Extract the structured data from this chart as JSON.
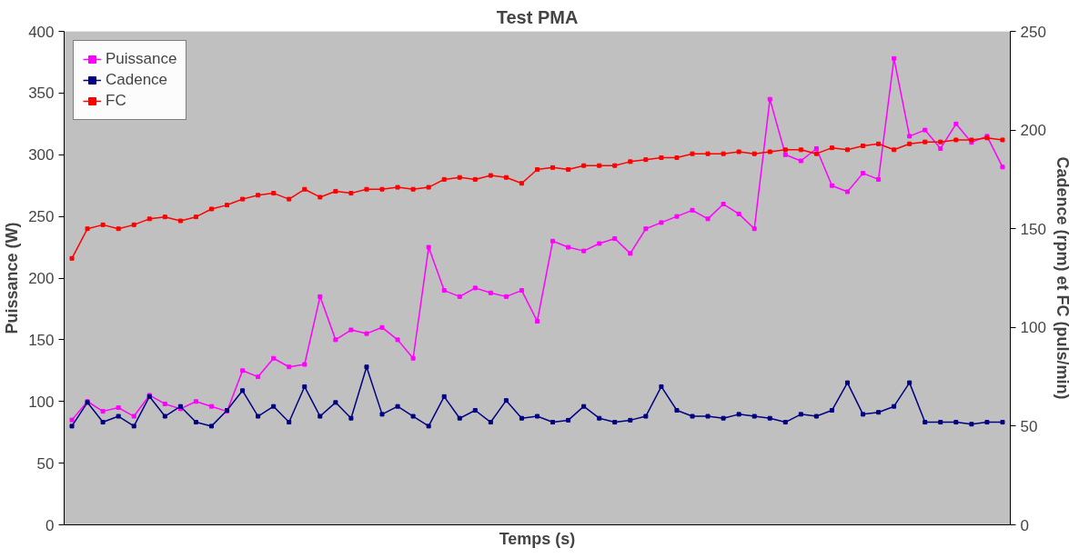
{
  "chart_data": {
    "type": "line",
    "title": "Test PMA",
    "xlabel": "Temps (s)",
    "ylabel": "Puissance (W)",
    "y2label": "Cadence (rpm) et FC (puls/min)",
    "categories": [
      null,
      null,
      null,
      null,
      null,
      null,
      null,
      null,
      null,
      null,
      null,
      null,
      null,
      null,
      null,
      null,
      null,
      null,
      null,
      null,
      null,
      null,
      null,
      null,
      null,
      null,
      null,
      null,
      null,
      null,
      null,
      null,
      null,
      null,
      null,
      null,
      null,
      null,
      null,
      null,
      null,
      null,
      null,
      null,
      null,
      null,
      null,
      null,
      null,
      null,
      null,
      null,
      null,
      null,
      null,
      null,
      null,
      null,
      null,
      null,
      null
    ],
    "ylim": [
      0,
      400
    ],
    "yticks": [
      0,
      50,
      100,
      150,
      200,
      250,
      300,
      350,
      400
    ],
    "y2lim": [
      0,
      250
    ],
    "y2ticks": [
      0,
      50,
      100,
      150,
      200,
      250
    ],
    "grid": false,
    "legend": "top left",
    "marker": "square",
    "line_style": "solid",
    "series": [
      {
        "name": "Puissance",
        "color": "#ff00ff",
        "values": [
          85,
          100,
          92,
          95,
          88,
          105,
          98,
          94,
          100,
          96,
          92,
          125,
          120,
          135,
          128,
          130,
          185,
          150,
          158,
          155,
          160,
          150,
          135,
          225,
          190,
          185,
          192,
          188,
          185,
          190,
          165,
          230,
          225,
          222,
          228,
          232,
          220,
          240,
          245,
          250,
          255,
          248,
          260,
          252,
          240,
          345,
          300,
          295,
          305,
          275,
          270,
          285,
          280,
          378,
          315,
          320,
          305,
          325,
          310,
          315,
          290
        ]
      },
      {
        "name": "Cadence",
        "color": "#000080",
        "axis": "y2",
        "values": [
          50,
          62,
          52,
          55,
          50,
          65,
          55,
          60,
          52,
          50,
          58,
          68,
          55,
          60,
          52,
          70,
          55,
          62,
          54,
          80,
          56,
          60,
          55,
          50,
          65,
          54,
          58,
          52,
          63,
          54,
          55,
          52,
          53,
          60,
          54,
          52,
          53,
          55,
          70,
          58,
          55,
          55,
          54,
          56,
          55,
          54,
          52,
          56,
          55,
          58,
          72,
          56,
          57,
          60,
          72,
          52,
          52,
          52,
          51,
          52,
          52
        ]
      },
      {
        "name": "FC",
        "color": "#ff0000",
        "axis": "y2",
        "values": [
          135,
          150,
          152,
          150,
          152,
          155,
          156,
          154,
          156,
          160,
          162,
          165,
          167,
          168,
          165,
          170,
          166,
          169,
          168,
          170,
          170,
          171,
          170,
          171,
          175,
          176,
          175,
          177,
          176,
          173,
          180,
          181,
          180,
          182,
          182,
          182,
          184,
          185,
          186,
          186,
          188,
          188,
          188,
          189,
          188,
          189,
          190,
          190,
          188,
          191,
          190,
          192,
          193,
          190,
          193,
          194,
          194,
          195,
          195,
          196,
          195
        ]
      }
    ]
  }
}
